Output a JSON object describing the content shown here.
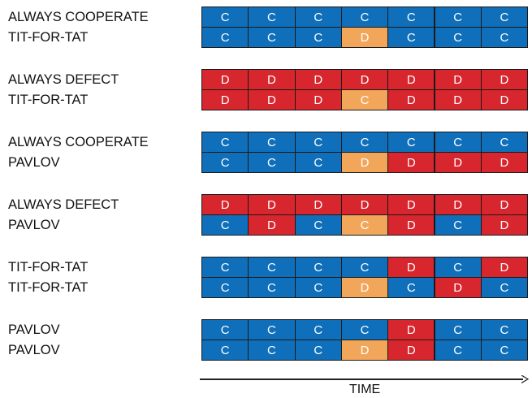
{
  "colors": {
    "C": "#0f6fba",
    "D": "#d7262d",
    "first_move": "#f2a65a"
  },
  "axis_label": "TIME",
  "matches": [
    {
      "players": [
        {
          "strategy": "ALWAYS COOPERATE",
          "moves": [
            "C",
            "C",
            "C",
            "C",
            "C",
            "C",
            "C"
          ]
        },
        {
          "strategy": "TIT-FOR-TAT",
          "moves": [
            "C",
            "C",
            "C",
            "D",
            "C",
            "C",
            "C"
          ]
        }
      ]
    },
    {
      "players": [
        {
          "strategy": "ALWAYS DEFECT",
          "moves": [
            "D",
            "D",
            "D",
            "D",
            "D",
            "D",
            "D"
          ]
        },
        {
          "strategy": "TIT-FOR-TAT",
          "moves": [
            "D",
            "D",
            "D",
            "C",
            "D",
            "D",
            "D"
          ]
        }
      ]
    },
    {
      "players": [
        {
          "strategy": "ALWAYS COOPERATE",
          "moves": [
            "C",
            "C",
            "C",
            "C",
            "C",
            "C",
            "C"
          ]
        },
        {
          "strategy": "PAVLOV",
          "moves": [
            "C",
            "C",
            "C",
            "D",
            "D",
            "D",
            "D"
          ]
        }
      ]
    },
    {
      "players": [
        {
          "strategy": "ALWAYS DEFECT",
          "moves": [
            "D",
            "D",
            "D",
            "D",
            "D",
            "D",
            "D"
          ]
        },
        {
          "strategy": "PAVLOV",
          "moves": [
            "C",
            "D",
            "C",
            "C",
            "D",
            "C",
            "D"
          ]
        }
      ]
    },
    {
      "players": [
        {
          "strategy": "TIT-FOR-TAT",
          "moves": [
            "C",
            "C",
            "C",
            "C",
            "D",
            "C",
            "D"
          ]
        },
        {
          "strategy": "TIT-FOR-TAT",
          "moves": [
            "C",
            "C",
            "C",
            "D",
            "C",
            "D",
            "C"
          ]
        }
      ]
    },
    {
      "players": [
        {
          "strategy": "PAVLOV",
          "moves": [
            "C",
            "C",
            "C",
            "C",
            "D",
            "C",
            "C"
          ]
        },
        {
          "strategy": "PAVLOV",
          "moves": [
            "C",
            "C",
            "C",
            "D",
            "D",
            "C",
            "C"
          ]
        }
      ]
    }
  ],
  "highlighted": [
    {
      "match": 0,
      "player": 1,
      "round": 3
    },
    {
      "match": 1,
      "player": 1,
      "round": 3
    },
    {
      "match": 2,
      "player": 1,
      "round": 3
    },
    {
      "match": 3,
      "player": 1,
      "round": 3
    },
    {
      "match": 4,
      "player": 1,
      "round": 3
    },
    {
      "match": 5,
      "player": 1,
      "round": 3
    }
  ]
}
